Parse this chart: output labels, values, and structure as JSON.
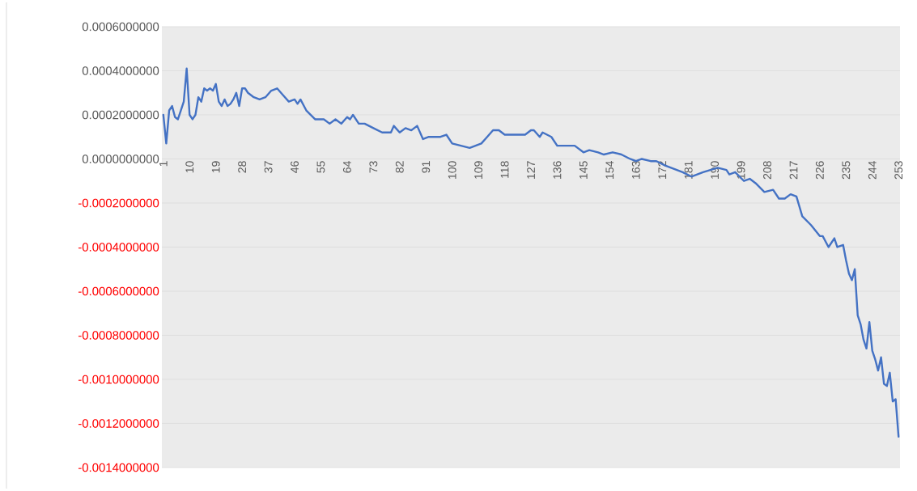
{
  "chart_data": {
    "type": "line",
    "x": [
      1,
      2,
      3,
      4,
      5,
      6,
      7,
      8,
      9,
      10,
      11,
      12,
      13,
      14,
      15,
      16,
      17,
      18,
      19,
      20,
      21,
      22,
      23,
      24,
      25,
      26,
      27,
      28,
      29,
      30,
      32,
      34,
      36,
      38,
      40,
      42,
      44,
      46,
      47,
      48,
      50,
      53,
      56,
      58,
      60,
      62,
      64,
      65,
      66,
      68,
      70,
      73,
      76,
      79,
      80,
      82,
      84,
      86,
      88,
      90,
      92,
      94,
      96,
      98,
      100,
      103,
      106,
      108,
      110,
      112,
      114,
      116,
      118,
      120,
      123,
      125,
      127,
      128,
      130,
      131,
      134,
      136,
      139,
      142,
      145,
      147,
      150,
      152,
      155,
      158,
      161,
      163,
      165,
      168,
      170,
      173,
      179,
      182,
      184,
      186,
      191,
      194,
      195,
      197,
      200,
      202,
      204,
      207,
      210,
      212,
      214,
      216,
      218,
      220,
      223,
      226,
      227,
      229,
      231,
      232,
      234,
      235,
      236,
      237,
      238,
      239,
      240,
      241,
      242,
      243,
      244,
      245,
      246,
      247,
      248,
      249,
      250,
      251,
      252,
      253
    ],
    "series": [
      {
        "color": "#4472c4",
        "values": [
          0.0002,
          7e-05,
          0.00022,
          0.00024,
          0.00019,
          0.00018,
          0.00022,
          0.00026,
          0.00041,
          0.0002,
          0.00018,
          0.0002,
          0.00028,
          0.00026,
          0.00032,
          0.00031,
          0.00032,
          0.00031,
          0.00034,
          0.00026,
          0.00024,
          0.00027,
          0.00024,
          0.00025,
          0.00027,
          0.0003,
          0.00024,
          0.00032,
          0.00032,
          0.0003,
          0.00028,
          0.00027,
          0.00028,
          0.00031,
          0.00032,
          0.00029,
          0.00026,
          0.00027,
          0.00025,
          0.00027,
          0.00022,
          0.00018,
          0.00018,
          0.00016,
          0.00018,
          0.00016,
          0.00019,
          0.00018,
          0.0002,
          0.00016,
          0.00016,
          0.00014,
          0.00012,
          0.00012,
          0.00015,
          0.00012,
          0.00014,
          0.00013,
          0.00015,
          9e-05,
          0.0001,
          0.0001,
          0.0001,
          0.00011,
          7e-05,
          6e-05,
          5e-05,
          6e-05,
          7e-05,
          0.0001,
          0.00013,
          0.00013,
          0.00011,
          0.00011,
          0.00011,
          0.00011,
          0.00013,
          0.00013,
          0.0001,
          0.00012,
          0.0001,
          6e-05,
          6e-05,
          6e-05,
          3e-05,
          4e-05,
          3e-05,
          2e-05,
          3e-05,
          2e-05,
          0,
          -1e-05,
          0,
          -1e-05,
          -1e-05,
          -3e-05,
          -6e-05,
          -8e-05,
          -7e-05,
          -6e-05,
          -4e-05,
          -5e-05,
          -7e-05,
          -6e-05,
          -0.0001,
          -9e-05,
          -0.00011,
          -0.00015,
          -0.00014,
          -0.00018,
          -0.00018,
          -0.00016,
          -0.00017,
          -0.00026,
          -0.0003,
          -0.00035,
          -0.00035,
          -0.0004,
          -0.00036,
          -0.0004,
          -0.00039,
          -0.00046,
          -0.00052,
          -0.00055,
          -0.0005,
          -0.00071,
          -0.00075,
          -0.00082,
          -0.00086,
          -0.00074,
          -0.00087,
          -0.00091,
          -0.00096,
          -0.0009,
          -0.00102,
          -0.00103,
          -0.00097,
          -0.0011,
          -0.00109,
          -0.00126
        ]
      }
    ],
    "xlim": [
      0.5,
      253.5
    ],
    "xticks": [
      1,
      10,
      19,
      28,
      37,
      46,
      55,
      64,
      73,
      82,
      91,
      100,
      109,
      118,
      127,
      136,
      145,
      154,
      163,
      172,
      181,
      190,
      199,
      208,
      217,
      226,
      235,
      244,
      253
    ],
    "ylim": [
      -0.0014,
      0.0006
    ],
    "yticks": [
      {
        "value": 0.0006,
        "label": "0.0006000000"
      },
      {
        "value": 0.0004,
        "label": "0.0004000000"
      },
      {
        "value": 0.0002,
        "label": "0.0002000000"
      },
      {
        "value": 0,
        "label": "0.0000000000"
      },
      {
        "value": -0.0002,
        "label": "-0.0002000000"
      },
      {
        "value": -0.0004,
        "label": "-0.0004000000"
      },
      {
        "value": -0.0006,
        "label": "-0.0006000000"
      },
      {
        "value": -0.0008,
        "label": "-0.0008000000"
      },
      {
        "value": -0.001,
        "label": "-0.0010000000"
      },
      {
        "value": -0.0012,
        "label": "-0.0012000000"
      },
      {
        "value": -0.0014,
        "label": "-0.0014000000"
      }
    ],
    "grid": "y",
    "line_style": "solid"
  }
}
